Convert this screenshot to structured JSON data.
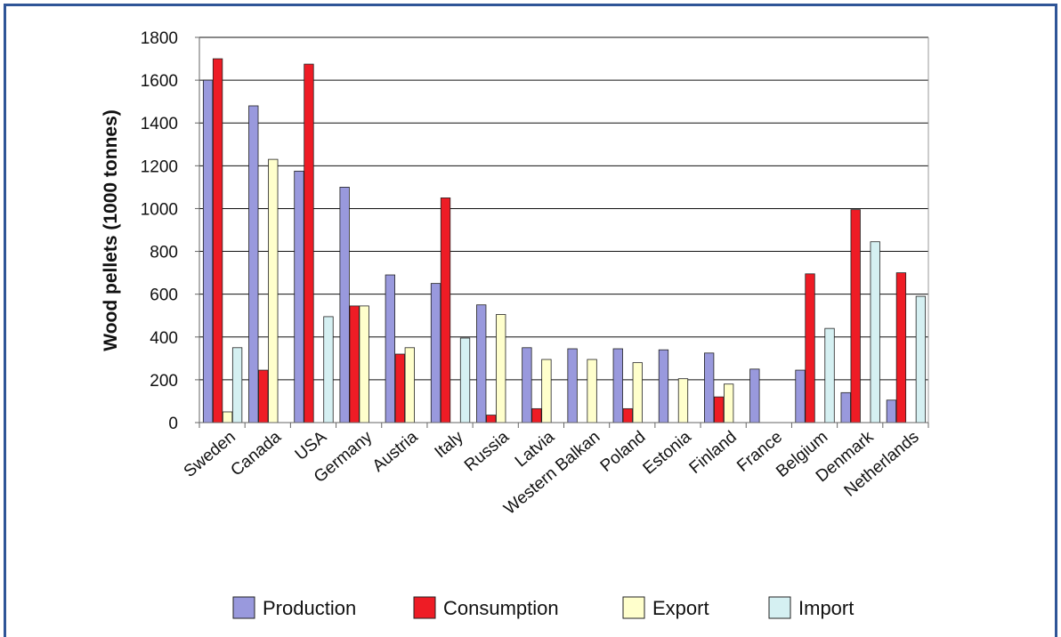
{
  "chart_data": {
    "type": "bar",
    "title": "",
    "xlabel": "",
    "ylabel": "Wood pellets (1000 tonnes)",
    "ylim": [
      0,
      1800
    ],
    "yticks": [
      0,
      200,
      400,
      600,
      800,
      1000,
      1200,
      1400,
      1600,
      1800
    ],
    "grid": true,
    "legend_position": "bottom",
    "categories": [
      "Sweden",
      "Canada",
      "USA",
      "Germany",
      "Austria",
      "Italy",
      "Russia",
      "Latvia",
      "Western Balkan",
      "Poland",
      "Estonia",
      "Finland",
      "France",
      "Belgium",
      "Denmark",
      "Netherlands"
    ],
    "series": [
      {
        "name": "Production",
        "color": "#9999dd",
        "values": [
          1600,
          1480,
          1175,
          1100,
          690,
          650,
          550,
          350,
          345,
          345,
          340,
          325,
          250,
          245,
          140,
          105
        ]
      },
      {
        "name": "Consumption",
        "color": "#ee1c25",
        "values": [
          1700,
          245,
          1675,
          545,
          320,
          1050,
          35,
          65,
          0,
          65,
          0,
          120,
          0,
          695,
          995,
          700
        ]
      },
      {
        "name": "Export",
        "color": "#ffffcc",
        "values": [
          50,
          1230,
          0,
          545,
          350,
          0,
          505,
          295,
          295,
          280,
          205,
          180,
          0,
          0,
          0,
          0
        ]
      },
      {
        "name": "Import",
        "color": "#d5f0f2",
        "values": [
          350,
          0,
          495,
          0,
          0,
          395,
          0,
          0,
          0,
          0,
          0,
          0,
          0,
          440,
          845,
          590
        ]
      }
    ]
  }
}
